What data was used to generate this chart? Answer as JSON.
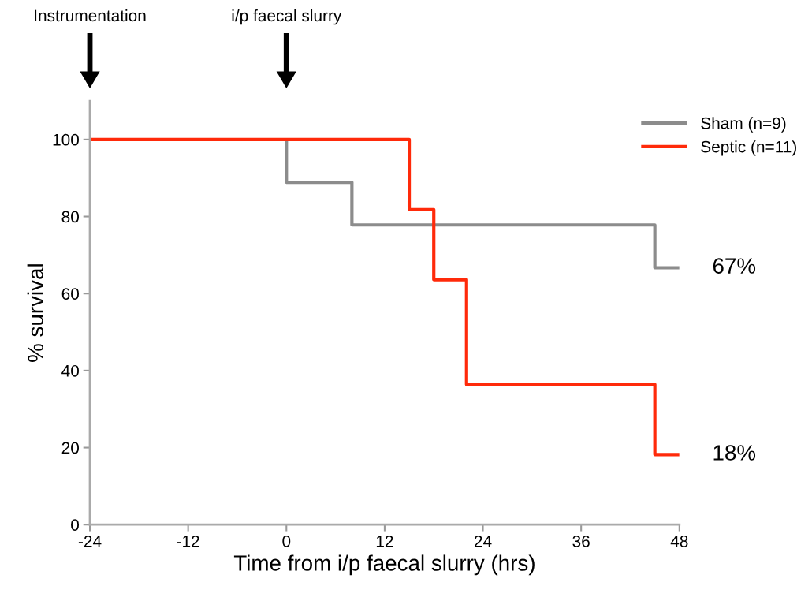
{
  "chart_data": {
    "type": "step",
    "xlabel": "Time from i/p faecal slurry (hrs)",
    "ylabel": "% survival",
    "series": [
      {
        "name": "Sham (n=9)",
        "color": "#8c8c8c",
        "x": [
          0,
          0,
          8,
          45,
          48
        ],
        "values": [
          100,
          88.9,
          77.8,
          66.7,
          66.7
        ]
      },
      {
        "name": "Septic (n=11)",
        "color": "#ff2a0a",
        "x": [
          -24,
          15,
          18,
          22,
          45,
          48
        ],
        "values": [
          100,
          81.8,
          63.6,
          36.4,
          18.2,
          18.2
        ]
      }
    ],
    "xlim": [
      -24,
      48
    ],
    "xticks": [
      -24,
      -12,
      0,
      12,
      24,
      36,
      48
    ],
    "ylim": [
      0,
      110
    ],
    "yticks": [
      0,
      20,
      40,
      60,
      80,
      100
    ],
    "annotations": [
      "Instrumentation",
      "i/p faecal slurry",
      {
        "text": "67%",
        "x": 48,
        "y": 66.7
      },
      {
        "text": "18%",
        "x": 48,
        "y": 18.2
      }
    ],
    "legend": "top right",
    "grid": false
  }
}
